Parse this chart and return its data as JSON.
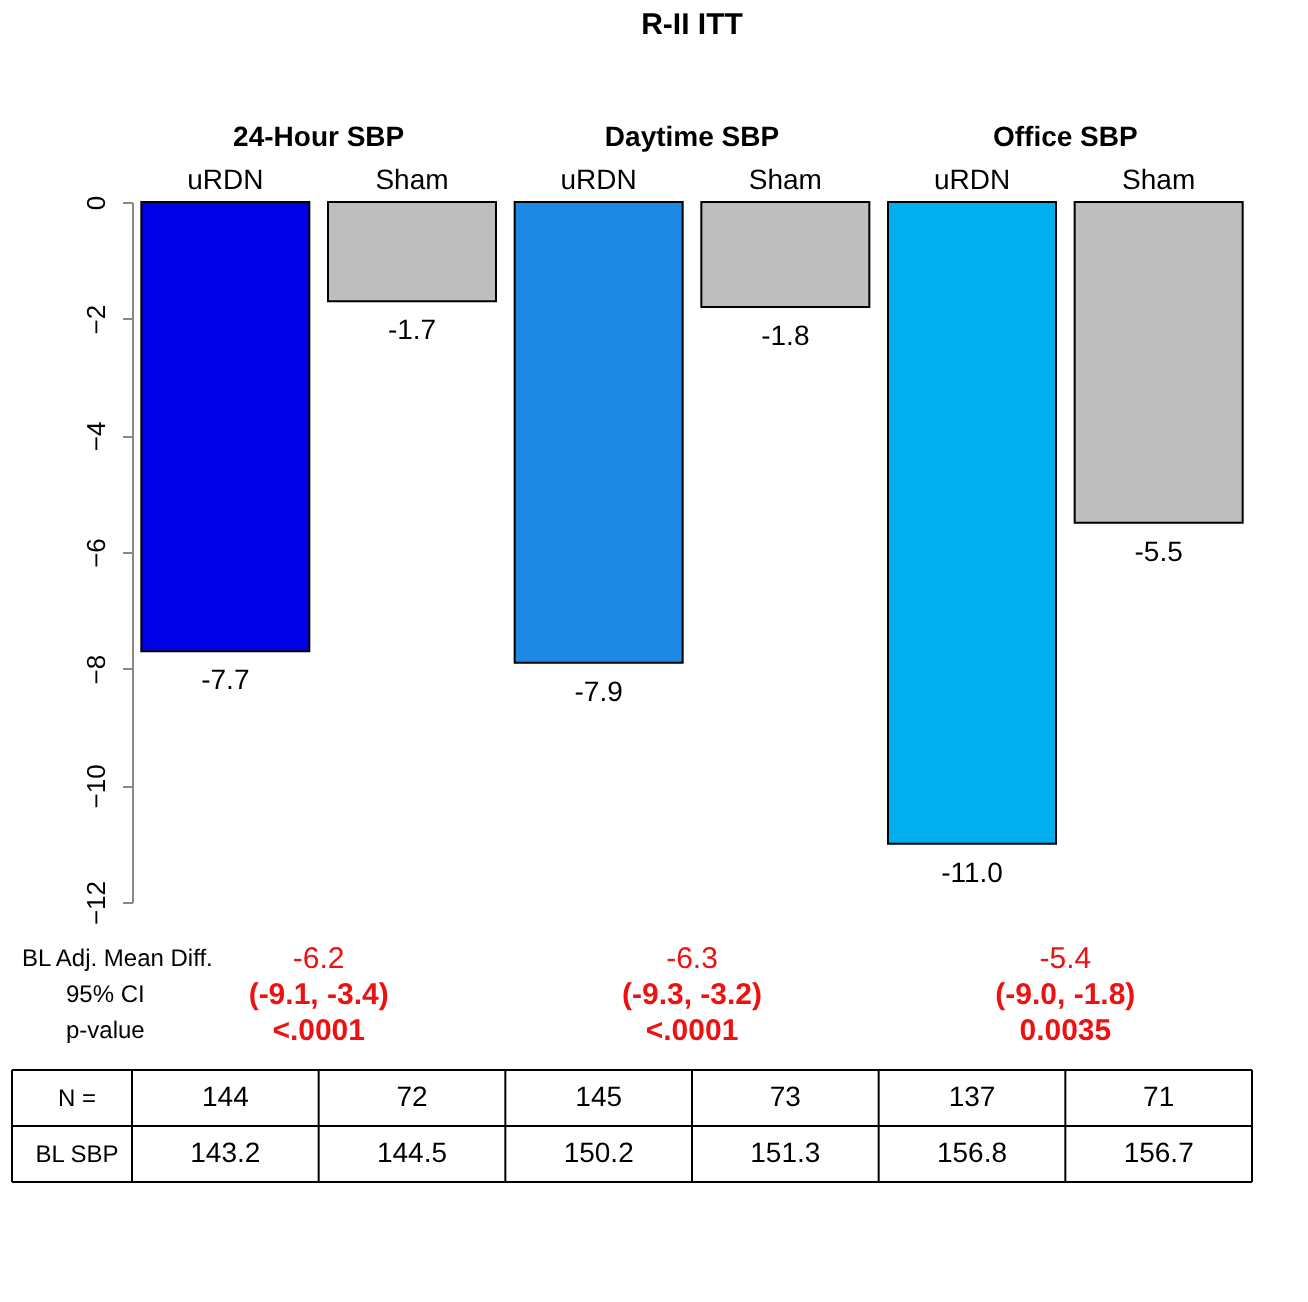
{
  "chart_data": {
    "type": "bar",
    "title": "R-II ITT",
    "categories": [
      "uRDN",
      "Sham",
      "uRDN",
      "Sham",
      "uRDN",
      "Sham"
    ],
    "values": [
      -7.7,
      -1.7,
      -7.9,
      -1.8,
      -11.0,
      -5.5
    ],
    "value_labels": [
      "-7.7",
      "-1.7",
      "-7.9",
      "-1.8",
      "-11.0",
      "-5.5"
    ],
    "colors": [
      "#0000e6",
      "#bebebe",
      "#1e88e5",
      "#bebebe",
      "#00b0ee",
      "#bebebe"
    ],
    "ylim": [
      -12,
      0
    ],
    "yticks": [
      0,
      -2,
      -4,
      -6,
      -8,
      -10,
      -12
    ],
    "grid": false,
    "annotations": [
      "24-Hour SBP",
      "Daytime SBP",
      "Office SBP",
      "BL Adj. Mean Diff.",
      "95% CI",
      "p-value",
      "-6.2",
      "(-9.1, -3.4)",
      "<.0001",
      "-6.3",
      "(-9.3, -3.2)",
      "<.0001",
      "-5.4",
      "(-9.0, -1.8)",
      "0.0035",
      "N =",
      "144",
      "72",
      "145",
      "73",
      "137",
      "71",
      "BL SBP",
      "143.2",
      "144.5",
      "150.2",
      "151.3",
      "156.8",
      "156.7"
    ]
  }
}
